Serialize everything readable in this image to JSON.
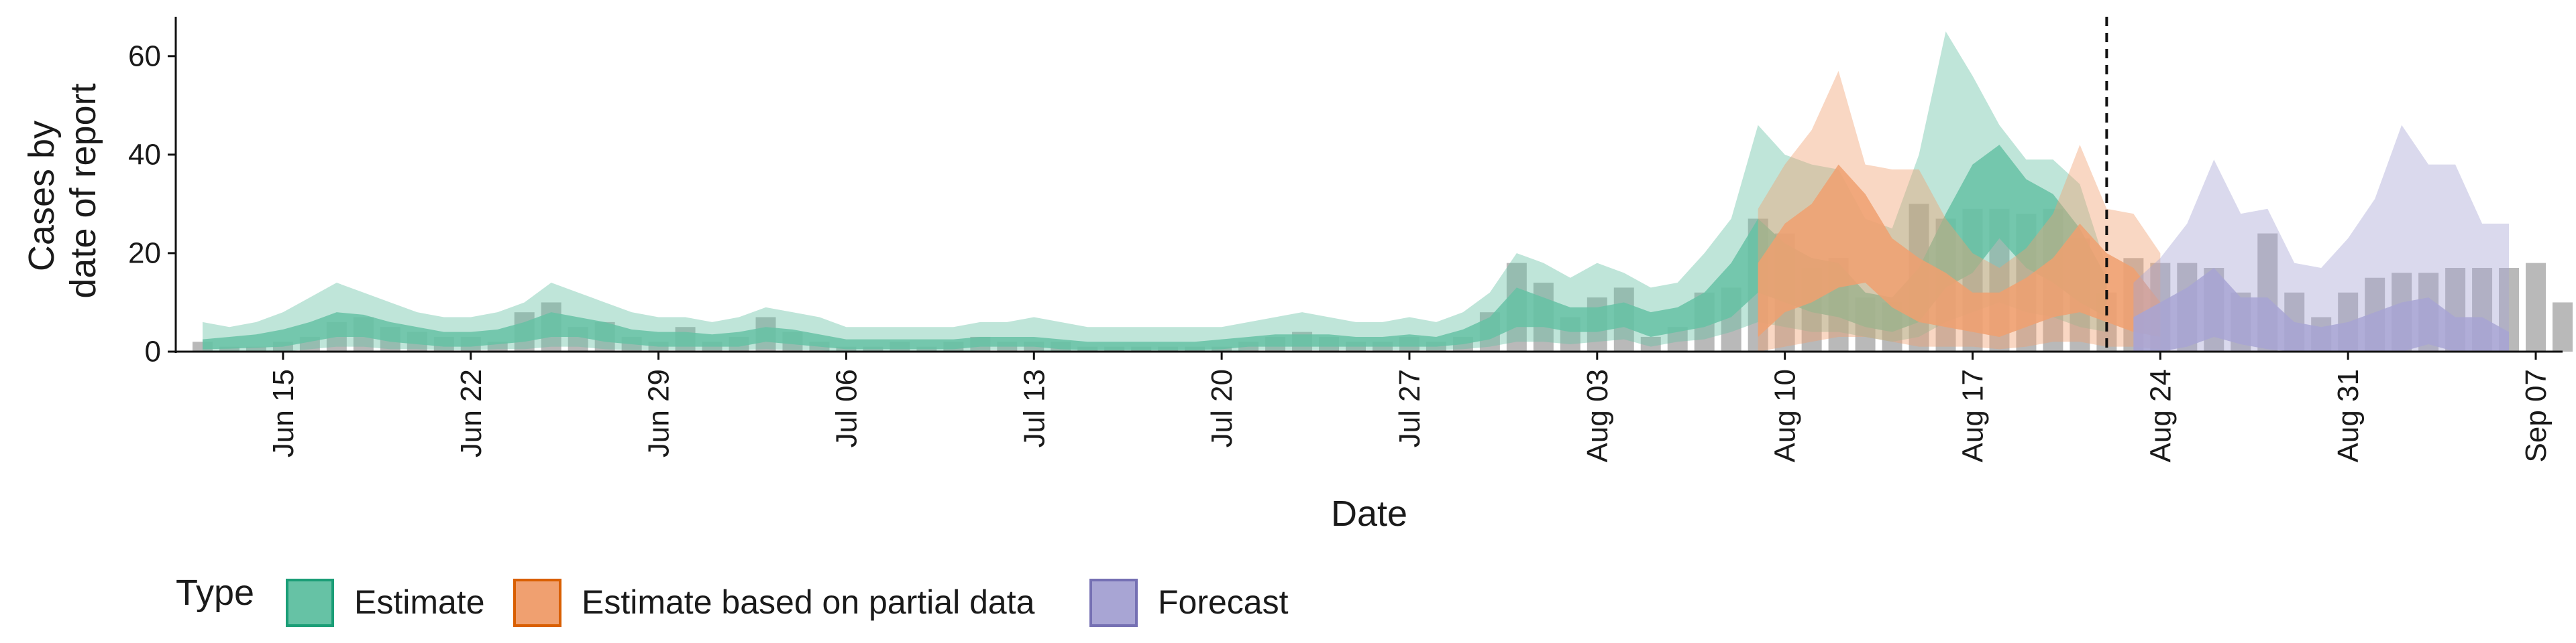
{
  "chart_data": {
    "type": "area",
    "xlabel": "Date",
    "ylabel_lines": [
      "Cases by",
      "date of report"
    ],
    "ylim": [
      0,
      68
    ],
    "xlim": [
      "2020-06-11",
      "2020-09-08"
    ],
    "x_ticks": [
      {
        "date": "2020-06-15",
        "label": "Jun 15"
      },
      {
        "date": "2020-06-22",
        "label": "Jun 22"
      },
      {
        "date": "2020-06-29",
        "label": "Jun 29"
      },
      {
        "date": "2020-07-06",
        "label": "Jul 06"
      },
      {
        "date": "2020-07-13",
        "label": "Jul 13"
      },
      {
        "date": "2020-07-20",
        "label": "Jul 20"
      },
      {
        "date": "2020-07-27",
        "label": "Jul 27"
      },
      {
        "date": "2020-08-03",
        "label": "Aug 03"
      },
      {
        "date": "2020-08-10",
        "label": "Aug 10"
      },
      {
        "date": "2020-08-17",
        "label": "Aug 17"
      },
      {
        "date": "2020-08-24",
        "label": "Aug 24"
      },
      {
        "date": "2020-08-31",
        "label": "Aug 31"
      },
      {
        "date": "2020-09-07",
        "label": "Sep 07"
      }
    ],
    "y_ticks": [
      0,
      20,
      40,
      60
    ],
    "grid": false,
    "legend_position": "bottom",
    "legend_title": "Type",
    "forecast_start": "2020-08-22",
    "observed_cases": {
      "start_date": "2020-06-12",
      "values": [
        2,
        1,
        1,
        2,
        3,
        6,
        7,
        5,
        4,
        3,
        3,
        2,
        8,
        10,
        5,
        6,
        3,
        2,
        5,
        2,
        3,
        7,
        4,
        2,
        1,
        1,
        2,
        1,
        2,
        3,
        2,
        2,
        2,
        1,
        1,
        1,
        1,
        1,
        1,
        2,
        3,
        4,
        3,
        2,
        2,
        3,
        2,
        3,
        8,
        18,
        14,
        7,
        11,
        13,
        3,
        5,
        12,
        13,
        27,
        24,
        17,
        19,
        11,
        10,
        30,
        27,
        29,
        29,
        28,
        29,
        23,
        12,
        19,
        18,
        18,
        17,
        12,
        24,
        12,
        7,
        12,
        15,
        16,
        16,
        17,
        17,
        17,
        18,
        10
      ]
    },
    "series": [
      {
        "name": "Estimate",
        "color": "#66c2a5",
        "edge": "#1b9e77",
        "start_date": "2020-06-12",
        "median": [
          1.5,
          1.8,
          2.2,
          3,
          4.5,
          6,
          5.5,
          4,
          3,
          2.5,
          2.5,
          3,
          4,
          5.5,
          5,
          4,
          3,
          2.5,
          2.5,
          2,
          2.5,
          3.5,
          3,
          2,
          1.5,
          1.5,
          1.5,
          1.5,
          1.5,
          2,
          2,
          2,
          1.5,
          1,
          1,
          1,
          1,
          1,
          1.5,
          2,
          2.5,
          2.5,
          2.5,
          2,
          2,
          2.5,
          2,
          3,
          4.5,
          9,
          8,
          6,
          6.5,
          7,
          5,
          6,
          8,
          12,
          20,
          16,
          13,
          12,
          8,
          7,
          11,
          20,
          27,
          40,
          28,
          24,
          17,
          11
        ],
        "inner_low": [
          0.5,
          0.6,
          0.8,
          1,
          2,
          3,
          3,
          2,
          1.5,
          1,
          1,
          1.5,
          2,
          3,
          3,
          2,
          1.5,
          1,
          1,
          1,
          1,
          2,
          1.5,
          1,
          0.5,
          0.5,
          0.5,
          0.5,
          0.5,
          1,
          1,
          1,
          0.5,
          0.3,
          0.3,
          0.3,
          0.3,
          0.3,
          0.5,
          1,
          1,
          1,
          1,
          1,
          1,
          1,
          1,
          1.5,
          2.5,
          5,
          5,
          4,
          4,
          5,
          3,
          4,
          5,
          7,
          12,
          10,
          8,
          7,
          5,
          4,
          6,
          13,
          16,
          23,
          17,
          14,
          10,
          7
        ],
        "inner_high": [
          2.5,
          3,
          3.5,
          4.5,
          6,
          8,
          7.5,
          6,
          5,
          4,
          4,
          4.5,
          6,
          8,
          7,
          6,
          4.5,
          4,
          4,
          3.5,
          4,
          5,
          4.5,
          3.5,
          2.5,
          2.5,
          2.5,
          2.5,
          2.5,
          3,
          3,
          3,
          2.5,
          2,
          2,
          2,
          2,
          2,
          2.5,
          3,
          3.5,
          3.5,
          3.5,
          3,
          3,
          3.5,
          3,
          4.5,
          7,
          13,
          11,
          9,
          9,
          10,
          8,
          9,
          12,
          18,
          27,
          22,
          19,
          18,
          12,
          11,
          17,
          28,
          38,
          42,
          35,
          32,
          25,
          15
        ],
        "outer_low": [
          0,
          0,
          0,
          0,
          0.5,
          1,
          1,
          0.5,
          0.5,
          0.3,
          0.3,
          0.5,
          0.5,
          1,
          1,
          0.5,
          0.3,
          0.3,
          0.3,
          0.3,
          0.3,
          0.5,
          0.3,
          0.3,
          0,
          0,
          0,
          0,
          0,
          0.3,
          0.3,
          0.3,
          0,
          0,
          0,
          0,
          0,
          0,
          0,
          0.3,
          0.3,
          0.3,
          0.3,
          0.3,
          0.3,
          0.3,
          0.3,
          0.5,
          1,
          2,
          2,
          1.5,
          2,
          2.5,
          1,
          2,
          2.5,
          4,
          6,
          5,
          4,
          4,
          3,
          2,
          3,
          6,
          8,
          10,
          8,
          7,
          5,
          4
        ],
        "outer_high": [
          6,
          5,
          6,
          8,
          11,
          14,
          12,
          10,
          8,
          7,
          7,
          8,
          10,
          14,
          12,
          10,
          8,
          7,
          7,
          6,
          7,
          9,
          8,
          7,
          5,
          5,
          5,
          5,
          5,
          6,
          6,
          7,
          6,
          5,
          5,
          5,
          5,
          5,
          5,
          6,
          7,
          8,
          7,
          6,
          6,
          7,
          6,
          8,
          12,
          20,
          18,
          15,
          18,
          16,
          13,
          14,
          20,
          27,
          46,
          40,
          38,
          37,
          27,
          25,
          40,
          65,
          56,
          46,
          39,
          39,
          34,
          17
        ]
      },
      {
        "name": "Estimate based on partial data",
        "color": "#f0a070",
        "edge": "#d95f02",
        "start_date": "2020-08-09",
        "median": [
          9,
          16,
          18,
          22,
          23,
          16,
          12,
          11,
          9,
          8,
          11,
          14,
          15,
          12,
          10,
          9
        ],
        "inner_low": [
          3,
          8,
          10,
          13,
          14,
          9,
          6,
          5,
          4,
          3,
          5,
          7,
          8,
          6,
          4,
          3
        ],
        "inner_high": [
          18,
          26,
          30,
          38,
          32,
          23,
          19,
          16,
          12,
          12,
          15,
          19,
          26,
          20,
          17,
          10
        ],
        "outer_low": [
          0,
          1,
          2,
          3,
          3,
          2,
          1,
          1,
          1,
          0.5,
          1,
          2,
          2,
          1,
          1,
          0.5
        ],
        "outer_high": [
          29,
          38,
          45,
          57,
          38,
          37,
          37,
          27,
          20,
          17,
          21,
          28,
          42,
          29,
          28,
          20
        ]
      },
      {
        "name": "Forecast",
        "color": "#a8a5d4",
        "edge": "#7570b3",
        "start_date": "2020-08-23",
        "median": [
          2.5,
          3.5,
          5,
          7,
          5.5,
          4,
          3,
          2.5,
          2.5,
          3,
          4,
          5,
          3.5,
          3,
          2.5
        ],
        "inner_low": [
          0,
          0,
          1,
          3,
          1.5,
          0.5,
          0,
          0,
          0,
          0,
          0,
          1.5,
          0,
          0,
          0
        ],
        "inner_high": [
          7,
          10,
          13,
          17,
          11,
          11,
          6,
          5,
          6,
          8,
          10,
          11,
          7,
          7,
          4
        ],
        "outer_low": [
          0,
          0,
          0,
          0,
          0,
          0,
          0,
          0,
          0,
          0,
          0,
          0,
          0,
          0,
          0
        ],
        "outer_high": [
          14,
          19,
          26,
          39,
          28,
          29,
          18,
          17,
          23,
          31,
          46,
          38,
          38,
          26,
          26
        ]
      }
    ]
  }
}
